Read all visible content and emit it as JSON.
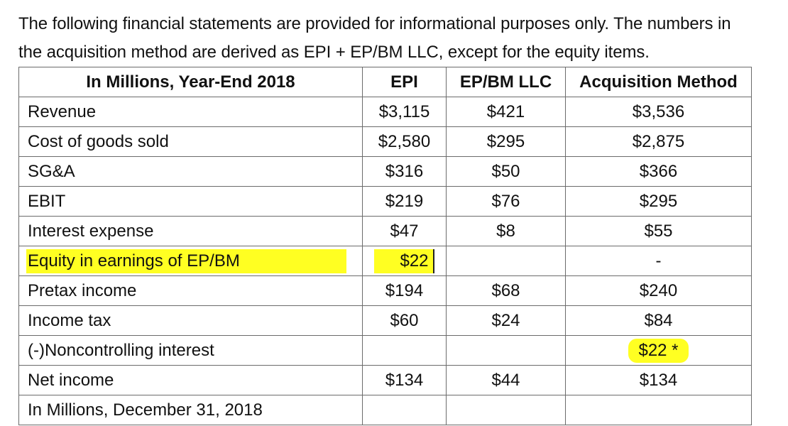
{
  "intro": {
    "line1": "The following financial statements are provided for informational purposes only. The numbers in",
    "line2": "the acquisition method are derived as EPI + EP/BM LLC, except for the equity items."
  },
  "table": {
    "headers": [
      "In Millions, Year-End 2018",
      "EPI",
      "EP/BM LLC",
      "Acquisition Method"
    ],
    "rows": [
      {
        "label": "Revenue",
        "epi": "$3,115",
        "epbm": "$421",
        "acq": "$3,536"
      },
      {
        "label": "Cost of goods sold",
        "epi": "$2,580",
        "epbm": "$295",
        "acq": "$2,875"
      },
      {
        "label": "SG&A",
        "epi": "$316",
        "epbm": "$50",
        "acq": "$366"
      },
      {
        "label": "EBIT",
        "epi": "$219",
        "epbm": "$76",
        "acq": "$295"
      },
      {
        "label": "Interest expense",
        "epi": "$47",
        "epbm": "$8",
        "acq": "$55"
      },
      {
        "label": "Equity in earnings of EP/BM",
        "epi": "$22",
        "epbm": "",
        "acq": "-"
      },
      {
        "label": "Pretax income",
        "epi": "$194",
        "epbm": "$68",
        "acq": "$240"
      },
      {
        "label": "Income tax",
        "epi": "$60",
        "epbm": "$24",
        "acq": "$84"
      },
      {
        "label": "(-)Noncontrolling interest",
        "epi": "",
        "epbm": "",
        "acq": "$22 *"
      },
      {
        "label": "Net income",
        "epi": "$134",
        "epbm": "$44",
        "acq": "$134"
      },
      {
        "label": "In Millions, December 31, 2018",
        "epi": "",
        "epbm": "",
        "acq": ""
      }
    ]
  },
  "colors": {
    "highlight": "#ffff22",
    "border": "#6b6b6b"
  }
}
